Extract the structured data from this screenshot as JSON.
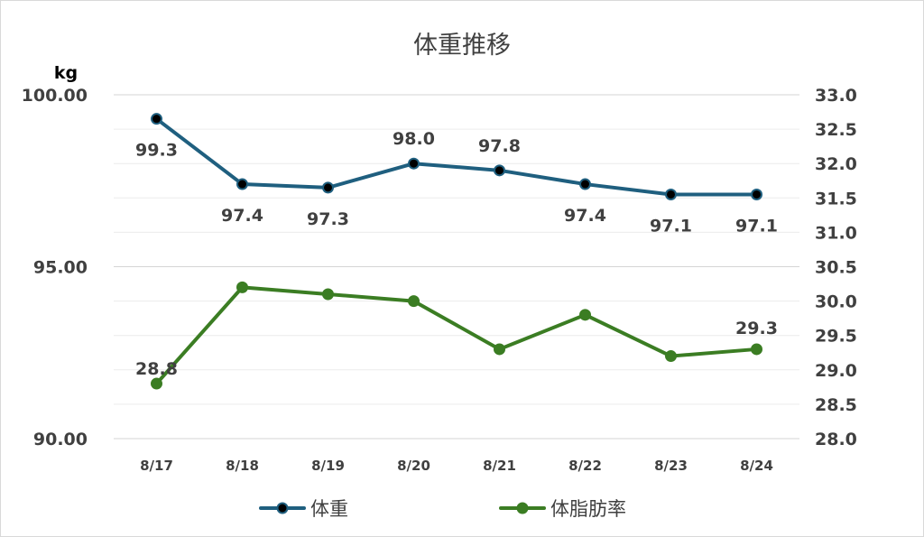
{
  "chart_data": {
    "type": "line",
    "title": "体重推移",
    "categories": [
      "8/17",
      "8/18",
      "8/19",
      "8/20",
      "8/21",
      "8/22",
      "8/23",
      "8/24"
    ],
    "y_left": {
      "unit_label": "kg",
      "range": [
        90,
        100
      ],
      "ticks": [
        "90.00",
        "95.00",
        "100.00"
      ]
    },
    "y_right": {
      "range": [
        28,
        33
      ],
      "ticks": [
        "28.0",
        "28.5",
        "29.0",
        "29.5",
        "30.0",
        "30.5",
        "31.0",
        "31.5",
        "32.0",
        "32.5",
        "33.0"
      ]
    },
    "series": [
      {
        "name": "体重",
        "axis": "left",
        "color": "#1f5f7f",
        "marker_fill": "#000000",
        "values": [
          99.3,
          97.4,
          97.3,
          98.0,
          97.8,
          97.4,
          97.1,
          97.1
        ],
        "labels": [
          "99.3",
          "97.4",
          "97.3",
          "98.0",
          "97.8",
          "97.4",
          "97.1",
          "97.1"
        ]
      },
      {
        "name": "体脂肪率",
        "axis": "right",
        "color": "#3b7d23",
        "marker_fill": "#3b7d23",
        "values": [
          28.8,
          30.2,
          30.1,
          30.0,
          29.3,
          29.8,
          29.2,
          29.3
        ],
        "labels": [
          "28.8",
          "",
          "",
          "",
          "",
          "",
          "",
          "29.3"
        ]
      }
    ],
    "grid": true,
    "legend": "bottom"
  }
}
